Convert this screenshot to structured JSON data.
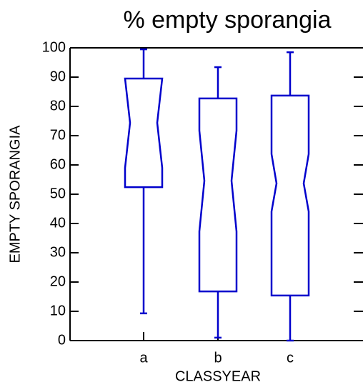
{
  "chart_data": {
    "type": "box",
    "title": "% empty sporangia",
    "xlabel": "CLASSYEAR",
    "ylabel": "EMPTY SPORANGIA",
    "categories": [
      "a",
      "b",
      "c"
    ],
    "color": "#0000cc",
    "notched": true,
    "whisker_low": [
      9.3,
      1,
      0
    ],
    "q1": [
      52.4,
      16.8,
      15.4
    ],
    "notch_low": [
      59,
      37.3,
      44.1
    ],
    "median": [
      74.4,
      54.6,
      53.7
    ],
    "notch_high": [
      89.5,
      71.7,
      63.7
    ],
    "q3": [
      89.5,
      82.7,
      83.7
    ],
    "whisker_high": [
      99.5,
      93.4,
      98.5
    ],
    "ylim": [
      0,
      100
    ],
    "yticks": [
      0,
      10,
      20,
      30,
      40,
      50,
      60,
      70,
      80,
      90,
      100
    ]
  }
}
